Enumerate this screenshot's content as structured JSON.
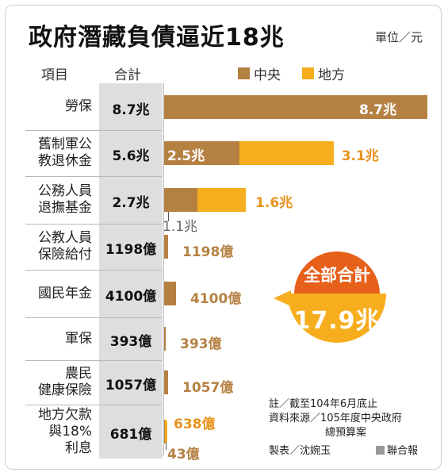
{
  "title": "政府潛藏負債逼近18兆",
  "unit": "單位／元",
  "headers": {
    "item": "項目",
    "total": "合計"
  },
  "legend": [
    {
      "name": "中央",
      "color": "#b58143"
    },
    {
      "name": "地方",
      "color": "#f6ae1e"
    }
  ],
  "summary": {
    "label": "全部合計",
    "value": "17.9兆"
  },
  "notes": {
    "line1": "註／截至104年6月底止",
    "line2": "資料來源／105年度中央政府",
    "line3": "總預算案",
    "maker": "製表／沈婉玉",
    "source": "聯合報"
  },
  "chart_data": {
    "type": "bar",
    "orientation": "horizontal",
    "stacked": true,
    "title": "政府潛藏負債逼近18兆",
    "unit": "單位／元",
    "categories": [
      {
        "label_lines": [
          "勞保"
        ],
        "total": "8.7兆"
      },
      {
        "label_lines": [
          "舊制軍公",
          "教退休金"
        ],
        "total": "5.6兆"
      },
      {
        "label_lines": [
          "公務人員",
          "退撫基金"
        ],
        "total": "2.7兆"
      },
      {
        "label_lines": [
          "公教人員",
          "保險給付"
        ],
        "total": "1198億"
      },
      {
        "label_lines": [
          "國民年金"
        ],
        "total": "4100億"
      },
      {
        "label_lines": [
          "軍保"
        ],
        "total": "393億"
      },
      {
        "label_lines": [
          "農民",
          "健康保險"
        ],
        "total": "1057億"
      },
      {
        "label_lines": [
          "地方欠款",
          "與18%",
          "利息"
        ],
        "total": "681億"
      }
    ],
    "series": [
      {
        "name": "中央",
        "color": "#b58143",
        "values_yi": [
          87000,
          25000,
          11000,
          1198,
          4100,
          393,
          1057,
          43
        ],
        "labels": [
          "8.7兆",
          "2.5兆",
          "1.1兆",
          "1198億",
          "4100億",
          "393億",
          "1057億",
          "43億"
        ]
      },
      {
        "name": "地方",
        "color": "#f6ae1e",
        "values_yi": [
          0,
          31000,
          16000,
          0,
          0,
          0,
          0,
          638
        ],
        "labels": [
          "",
          "3.1兆",
          "1.6兆",
          "",
          "",
          "",
          "",
          "638億"
        ]
      }
    ],
    "grand_total": "17.9兆",
    "legend_position": "top-right"
  }
}
